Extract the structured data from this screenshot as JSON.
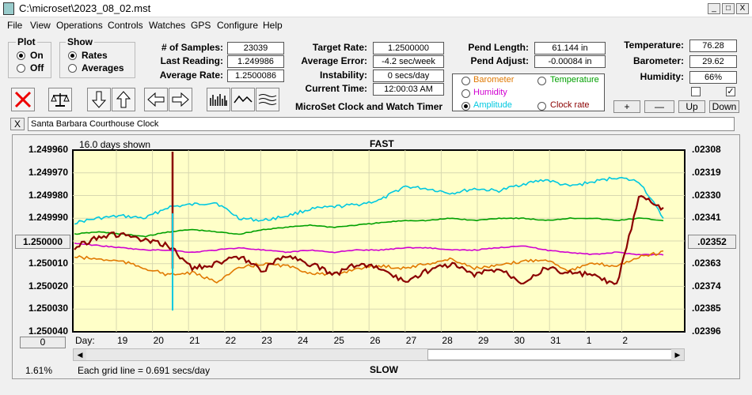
{
  "window": {
    "title": "C:\\microset\\2023_08_02.mst",
    "min": "_",
    "max": "□",
    "close": "X"
  },
  "menu": [
    "File",
    "View",
    "Operations",
    "Controls",
    "Watches",
    "GPS",
    "Configure",
    "Help"
  ],
  "plot": {
    "title": "Plot",
    "on": "On",
    "off": "Off",
    "selected": "On"
  },
  "show": {
    "title": "Show",
    "rates": "Rates",
    "averages": "Averages",
    "selected": "Rates"
  },
  "stats": {
    "samples_label": "# of Samples:",
    "samples": "23039",
    "last_label": "Last Reading:",
    "last": "1.249986",
    "avg_label": "Average Rate:",
    "avg": "1.2500086",
    "target_label": "Target Rate:",
    "target": "1.2500000",
    "error_label": "Average Error:",
    "error": "-4.2 sec/week",
    "instab_label": "Instability:",
    "instab": "0 secs/day",
    "time_label": "Current Time:",
    "time": "12:00:03 AM",
    "pendlen_label": "Pend Length:",
    "pendlen": "61.144 in",
    "pendadj_label": "Pend Adjust:",
    "pendadj": "-0.00084 in",
    "temp_label": "Temperature:",
    "temp": "76.28",
    "baro_label": "Barometer:",
    "baro": "29.62",
    "hum_label": "Humidity:",
    "hum": "66%"
  },
  "app_caption": "MicroSet Clock and Watch Timer",
  "channels": {
    "barometer": "Barometer",
    "temperature": "Temperature",
    "humidity": "Humidity",
    "amplitude": "Amplitude",
    "clockrate": "Clock rate",
    "selected": "Amplitude",
    "colors": {
      "barometer": "#e07800",
      "temperature": "#00a000",
      "humidity": "#d000d0",
      "amplitude": "#00c8e0",
      "clockrate": "#8b0000"
    }
  },
  "buttons": {
    "plus": "+",
    "minus": "—",
    "up": "Up",
    "down": "Down",
    "zero": "0",
    "x": "X"
  },
  "checkboxes": {
    "left": false,
    "right": true
  },
  "clock_name": "Santa Barbara Courthouse Clock",
  "chart_data": {
    "type": "line",
    "top_label": "FAST",
    "bottom_label": "SLOW",
    "days_shown": "16.0 days shown",
    "grid_note": "Each grid line = 0.691 secs/day",
    "percent": "1.61%",
    "x_axis_label": "Day:",
    "x_ticks": [
      "19",
      "20",
      "21",
      "22",
      "23",
      "24",
      "25",
      "26",
      "27",
      "28",
      "29",
      "30",
      "31",
      "1",
      "2"
    ],
    "y_ticks": [
      "1.249960",
      "1.249970",
      "1.249980",
      "1.249990",
      "1.250000",
      "1.250010",
      "1.250020",
      "1.250030",
      "1.250040"
    ],
    "y_center_button": "1.250000",
    "ylim": [
      1.24996,
      1.25004
    ],
    "right_ticks": [
      ".02308",
      ".02319",
      ".02330",
      ".02341",
      ".02352",
      ".02363",
      ".02374",
      ".02385",
      ".02396"
    ],
    "right_center_button": ".02352",
    "series": [
      {
        "name": "Amplitude",
        "color": "#00c8e0",
        "values": [
          1.249992,
          1.24999,
          1.249989,
          1.24999,
          1.249985,
          1.249984,
          1.249983,
          1.24999,
          1.249991,
          1.249989,
          1.249986,
          1.249985,
          1.249984,
          1.249982,
          1.249976,
          1.249977,
          1.249979,
          1.249977,
          1.249978,
          1.249975,
          1.249973,
          1.249976,
          1.249974,
          1.249972,
          1.249974,
          1.24999
        ]
      },
      {
        "name": "Temperature",
        "color": "#00a000",
        "values": [
          1.249997,
          1.249996,
          1.249997,
          1.249998,
          1.249996,
          1.249995,
          1.249996,
          1.249997,
          1.249995,
          1.249994,
          1.249993,
          1.249994,
          1.249993,
          1.249992,
          1.249991,
          1.249991,
          1.24999,
          1.249991,
          1.24999,
          1.24999,
          1.249991,
          1.24999,
          1.24999,
          1.249991,
          1.24999,
          1.249991
        ]
      },
      {
        "name": "Humidity",
        "color": "#d000d0",
        "values": [
          1.250001,
          1.250002,
          1.250003,
          1.250004,
          1.250004,
          1.250005,
          1.250004,
          1.250003,
          1.250004,
          1.250005,
          1.250004,
          1.250005,
          1.250004,
          1.250004,
          1.250003,
          1.250003,
          1.250004,
          1.250004,
          1.250003,
          1.250002,
          1.250004,
          1.250005,
          1.250006,
          1.250005,
          1.250006,
          1.250006
        ]
      },
      {
        "name": "Barometer",
        "color": "#e07800",
        "values": [
          1.250007,
          1.250008,
          1.250009,
          1.250012,
          1.250015,
          1.250014,
          1.250018,
          1.250012,
          1.25001,
          1.250011,
          1.250014,
          1.250015,
          1.250012,
          1.250011,
          1.250012,
          1.25001,
          1.250008,
          1.250012,
          1.250011,
          1.250009,
          1.250008,
          1.250013,
          1.25001,
          1.250011,
          1.250007,
          1.250005
        ]
      },
      {
        "name": "Clock rate",
        "color": "#8b0000",
        "values": [
          1.250003,
          1.249998,
          1.249997,
          1.25,
          1.250002,
          1.250012,
          1.25001,
          1.250007,
          1.250013,
          1.250006,
          1.25001,
          1.250015,
          1.25001,
          1.250012,
          1.250018,
          1.250013,
          1.25001,
          1.250015,
          1.250012,
          1.250018,
          1.250012,
          1.250014,
          1.250015,
          1.25002,
          1.24998,
          1.249986
        ]
      }
    ]
  }
}
